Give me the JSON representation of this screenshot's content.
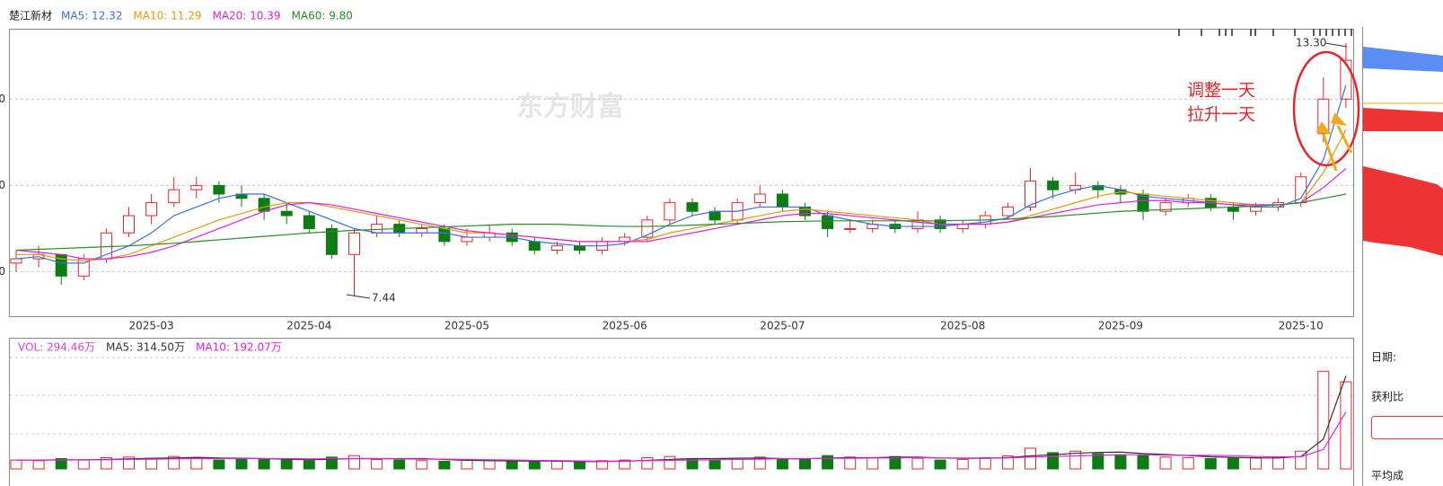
{
  "chart_data": {
    "type": "candlestick",
    "title": "楚江新材",
    "categories": [
      null,
      null,
      null,
      null,
      null,
      null,
      "2025-03",
      null,
      null,
      null,
      null,
      null,
      null,
      "2025-04",
      null,
      null,
      null,
      null,
      null,
      null,
      "2025-05",
      null,
      null,
      null,
      null,
      null,
      null,
      "2025-06",
      null,
      null,
      null,
      null,
      null,
      null,
      "2025-07",
      null,
      null,
      null,
      null,
      null,
      null,
      null,
      "2025-08",
      null,
      null,
      null,
      null,
      null,
      null,
      "2025-09",
      null,
      null,
      null,
      null,
      null,
      null,
      null,
      "2025-10",
      null,
      null
    ],
    "candles": [
      [
        8.2,
        8.5,
        8.0,
        8.3
      ],
      [
        8.3,
        8.6,
        8.1,
        8.4
      ],
      [
        8.4,
        8.4,
        7.7,
        7.9
      ],
      [
        7.9,
        8.4,
        7.8,
        8.3
      ],
      [
        8.3,
        9.0,
        8.2,
        8.9
      ],
      [
        8.9,
        9.5,
        8.8,
        9.3
      ],
      [
        9.3,
        9.8,
        9.1,
        9.6
      ],
      [
        9.6,
        10.2,
        9.5,
        9.9
      ],
      [
        9.9,
        10.2,
        9.7,
        10.0
      ],
      [
        10.0,
        10.1,
        9.6,
        9.8
      ],
      [
        9.8,
        10.0,
        9.5,
        9.7
      ],
      [
        9.7,
        9.8,
        9.2,
        9.4
      ],
      [
        9.4,
        9.6,
        9.1,
        9.3
      ],
      [
        9.3,
        9.4,
        8.9,
        9.0
      ],
      [
        9.0,
        9.1,
        8.3,
        8.4
      ],
      [
        8.4,
        9.0,
        7.44,
        8.9
      ],
      [
        8.9,
        9.3,
        8.8,
        9.1
      ],
      [
        9.1,
        9.2,
        8.8,
        8.9
      ],
      [
        8.9,
        9.1,
        8.8,
        9.0
      ],
      [
        9.0,
        9.1,
        8.6,
        8.7
      ],
      [
        8.7,
        9.0,
        8.6,
        8.8
      ],
      [
        8.8,
        9.1,
        8.7,
        8.9
      ],
      [
        8.9,
        9.0,
        8.6,
        8.7
      ],
      [
        8.7,
        8.8,
        8.4,
        8.5
      ],
      [
        8.5,
        8.7,
        8.4,
        8.6
      ],
      [
        8.6,
        8.7,
        8.4,
        8.5
      ],
      [
        8.5,
        8.8,
        8.4,
        8.7
      ],
      [
        8.7,
        8.9,
        8.6,
        8.8
      ],
      [
        8.8,
        9.3,
        8.7,
        9.2
      ],
      [
        9.2,
        9.7,
        9.1,
        9.6
      ],
      [
        9.6,
        9.7,
        9.3,
        9.4
      ],
      [
        9.4,
        9.5,
        9.1,
        9.2
      ],
      [
        9.2,
        9.7,
        9.1,
        9.6
      ],
      [
        9.6,
        10.0,
        9.5,
        9.8
      ],
      [
        9.8,
        9.9,
        9.4,
        9.5
      ],
      [
        9.5,
        9.6,
        9.2,
        9.3
      ],
      [
        9.3,
        9.4,
        8.8,
        9.0
      ],
      [
        9.0,
        9.2,
        8.9,
        9.0
      ],
      [
        9.0,
        9.2,
        8.9,
        9.1
      ],
      [
        9.1,
        9.2,
        8.9,
        9.0
      ],
      [
        9.0,
        9.4,
        8.9,
        9.2
      ],
      [
        9.2,
        9.3,
        8.9,
        9.0
      ],
      [
        9.0,
        9.2,
        8.9,
        9.1
      ],
      [
        9.1,
        9.4,
        9.0,
        9.3
      ],
      [
        9.3,
        9.6,
        9.2,
        9.5
      ],
      [
        9.5,
        10.4,
        9.4,
        10.1
      ],
      [
        10.1,
        10.2,
        9.7,
        9.9
      ],
      [
        9.9,
        10.3,
        9.8,
        10.0
      ],
      [
        10.0,
        10.1,
        9.7,
        9.9
      ],
      [
        9.9,
        10.0,
        9.6,
        9.8
      ],
      [
        9.8,
        9.9,
        9.2,
        9.4
      ],
      [
        9.4,
        9.7,
        9.3,
        9.6
      ],
      [
        9.6,
        9.8,
        9.5,
        9.7
      ],
      [
        9.7,
        9.8,
        9.4,
        9.5
      ],
      [
        9.5,
        9.6,
        9.2,
        9.4
      ],
      [
        9.4,
        9.6,
        9.3,
        9.5
      ],
      [
        9.5,
        9.7,
        9.4,
        9.6
      ],
      [
        9.6,
        10.3,
        9.5,
        10.2
      ],
      [
        11.2,
        12.5,
        11.0,
        12.0
      ],
      [
        12.0,
        13.3,
        11.8,
        12.9
      ]
    ],
    "up_color": "#e8262b",
    "down_color": "#0b7d13",
    "ma": [
      {
        "label": "MA5: 12.32",
        "color": "#3d6fe0",
        "values": [
          8.3,
          8.35,
          8.2,
          8.2,
          8.4,
          8.6,
          8.9,
          9.3,
          9.5,
          9.7,
          9.8,
          9.8,
          9.6,
          9.4,
          9.2,
          9.0,
          8.9,
          8.9,
          8.9,
          8.9,
          8.8,
          8.8,
          8.8,
          8.7,
          8.65,
          8.6,
          8.6,
          8.65,
          8.85,
          9.1,
          9.3,
          9.4,
          9.4,
          9.5,
          9.5,
          9.5,
          9.3,
          9.2,
          9.1,
          9.05,
          9.05,
          9.05,
          9.1,
          9.15,
          9.25,
          9.55,
          9.75,
          9.9,
          10.0,
          9.9,
          9.75,
          9.7,
          9.65,
          9.6,
          9.55,
          9.5,
          9.5,
          9.7,
          10.6,
          12.32
        ]
      },
      {
        "label": "MA10: 11.29",
        "color": "#e39a12",
        "values": [
          8.4,
          8.4,
          8.3,
          8.25,
          8.3,
          8.4,
          8.6,
          8.8,
          9.0,
          9.2,
          9.35,
          9.5,
          9.6,
          9.6,
          9.5,
          9.4,
          9.3,
          9.2,
          9.1,
          9.0,
          8.9,
          8.9,
          8.85,
          8.8,
          8.75,
          8.7,
          8.7,
          8.7,
          8.75,
          8.9,
          9.0,
          9.1,
          9.2,
          9.3,
          9.4,
          9.45,
          9.4,
          9.35,
          9.3,
          9.25,
          9.2,
          9.1,
          9.1,
          9.1,
          9.15,
          9.3,
          9.45,
          9.6,
          9.75,
          9.85,
          9.8,
          9.75,
          9.7,
          9.65,
          9.6,
          9.55,
          9.55,
          9.6,
          10.3,
          11.29
        ]
      },
      {
        "label": "MA20: 10.39",
        "color": "#e21fe0",
        "values": [
          8.5,
          8.45,
          8.4,
          8.3,
          8.3,
          8.35,
          8.45,
          8.6,
          8.8,
          9.0,
          9.2,
          9.4,
          9.55,
          9.6,
          9.55,
          9.45,
          9.35,
          9.25,
          9.15,
          9.05,
          8.95,
          8.9,
          8.85,
          8.8,
          8.75,
          8.7,
          8.7,
          8.7,
          8.7,
          8.8,
          8.9,
          9.0,
          9.1,
          9.2,
          9.3,
          9.35,
          9.35,
          9.3,
          9.25,
          9.2,
          9.15,
          9.1,
          9.1,
          9.1,
          9.15,
          9.25,
          9.35,
          9.45,
          9.55,
          9.6,
          9.65,
          9.65,
          9.6,
          9.6,
          9.55,
          9.55,
          9.55,
          9.6,
          9.95,
          10.39
        ]
      },
      {
        "label": "MA60: 9.80",
        "color": "#2a8c2a",
        "values": [
          8.5,
          8.52,
          8.54,
          8.56,
          8.58,
          8.6,
          8.63,
          8.66,
          8.7,
          8.74,
          8.78,
          8.82,
          8.86,
          8.9,
          8.93,
          8.96,
          8.98,
          9.0,
          9.02,
          9.04,
          9.06,
          9.08,
          9.1,
          9.1,
          9.1,
          9.08,
          9.06,
          9.05,
          9.05,
          9.06,
          9.08,
          9.1,
          9.12,
          9.14,
          9.16,
          9.17,
          9.18,
          9.18,
          9.18,
          9.18,
          9.18,
          9.18,
          9.19,
          9.2,
          9.22,
          9.25,
          9.28,
          9.32,
          9.36,
          9.4,
          9.42,
          9.44,
          9.46,
          9.48,
          9.5,
          9.52,
          9.55,
          9.6,
          9.7,
          9.8
        ]
      }
    ],
    "ylim": [
      6.97,
      13.63
    ],
    "yticks": [
      {
        "value": 8,
        "label": "0"
      },
      {
        "value": 10,
        "label": "0"
      },
      {
        "value": 12,
        "label": "0"
      }
    ],
    "grid": true,
    "volume": {
      "label": "VOL: 294.46万",
      "color": "#e040e0",
      "ylim": [
        0,
        425
      ],
      "values": [
        30,
        28,
        35,
        30,
        38,
        40,
        36,
        42,
        38,
        30,
        32,
        34,
        30,
        28,
        40,
        45,
        32,
        30,
        28,
        26,
        30,
        28,
        25,
        24,
        26,
        24,
        28,
        30,
        38,
        42,
        35,
        30,
        36,
        40,
        34,
        32,
        45,
        40,
        38,
        42,
        36,
        30,
        32,
        38,
        44,
        70,
        55,
        60,
        52,
        48,
        45,
        40,
        38,
        35,
        36,
        38,
        40,
        60,
        330,
        294.46
      ],
      "ma": [
        {
          "label": "MA5: 314.50万",
          "color": "#333333",
          "values": [
            30,
            30,
            31,
            31,
            32,
            34,
            36,
            37,
            39,
            37,
            36,
            35,
            33,
            31,
            33,
            35,
            35,
            35,
            35,
            32,
            29,
            28,
            27,
            27,
            27,
            25,
            25,
            26,
            29,
            32,
            35,
            35,
            36,
            37,
            35,
            34,
            37,
            38,
            38,
            40,
            40,
            37,
            36,
            36,
            38,
            44,
            48,
            53,
            56,
            57,
            52,
            49,
            45,
            41,
            39,
            37,
            37,
            42,
            101,
            314.5
          ]
        },
        {
          "label": "MA10: 192.07万",
          "color": "#e21fe0",
          "values": [
            30,
            30,
            30,
            31,
            31,
            32,
            33,
            34,
            35,
            35,
            35,
            35,
            35,
            34,
            35,
            35,
            35,
            34,
            33,
            33,
            32,
            31,
            30,
            29,
            28,
            27,
            26,
            27,
            28,
            29,
            30,
            31,
            32,
            33,
            35,
            35,
            36,
            36,
            37,
            37,
            38,
            37,
            37,
            37,
            37,
            40,
            42,
            44,
            46,
            48,
            48,
            47,
            46,
            46,
            45,
            42,
            41,
            41,
            66,
            192.07
          ]
        }
      ]
    },
    "annotations": [
      "13.30",
      "7.44",
      "调整一天",
      "拉升一天"
    ],
    "watermark": "东方财富",
    "side_panel": [
      "日期:",
      "获利比",
      "平均成"
    ]
  }
}
